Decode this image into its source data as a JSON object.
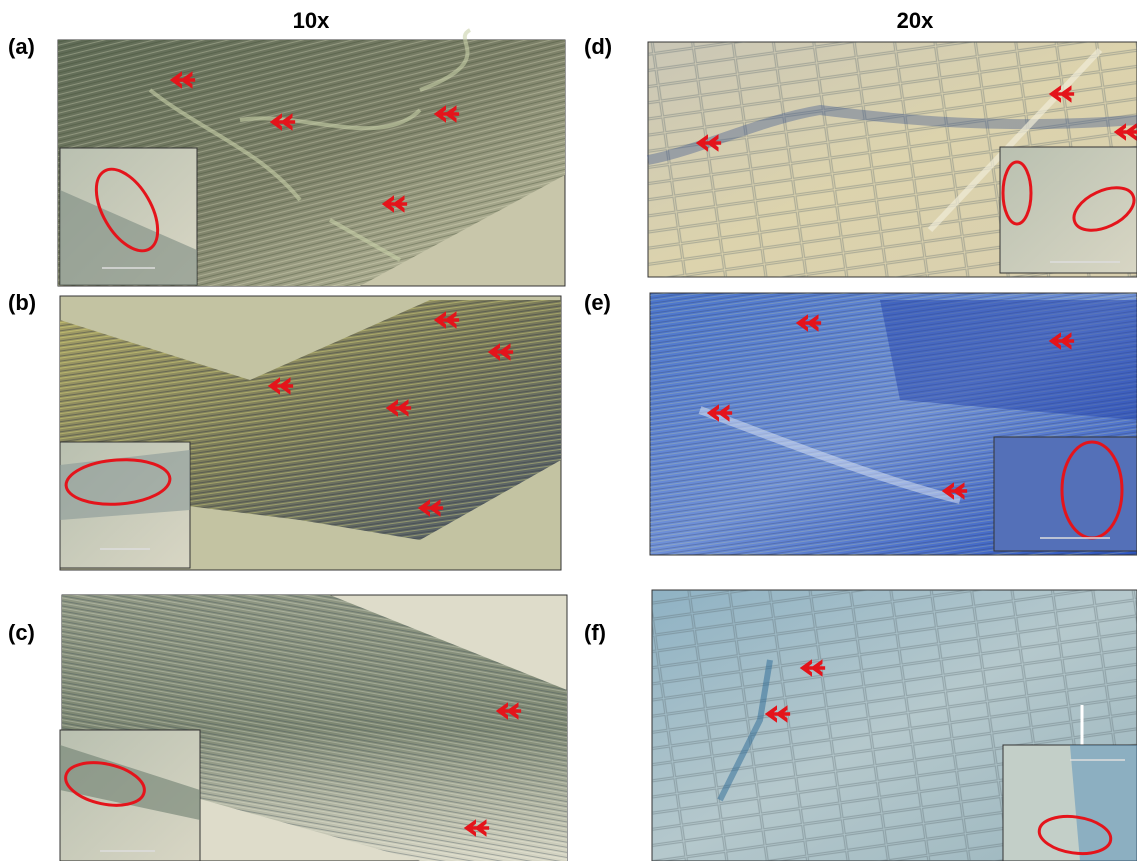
{
  "columns": [
    "10x",
    "20x"
  ],
  "panels": [
    {
      "label": "(a)"
    },
    {
      "label": "(b)"
    },
    {
      "label": "(c)"
    },
    {
      "label": "(d)"
    },
    {
      "label": "(e)"
    },
    {
      "label": "(f)"
    }
  ]
}
